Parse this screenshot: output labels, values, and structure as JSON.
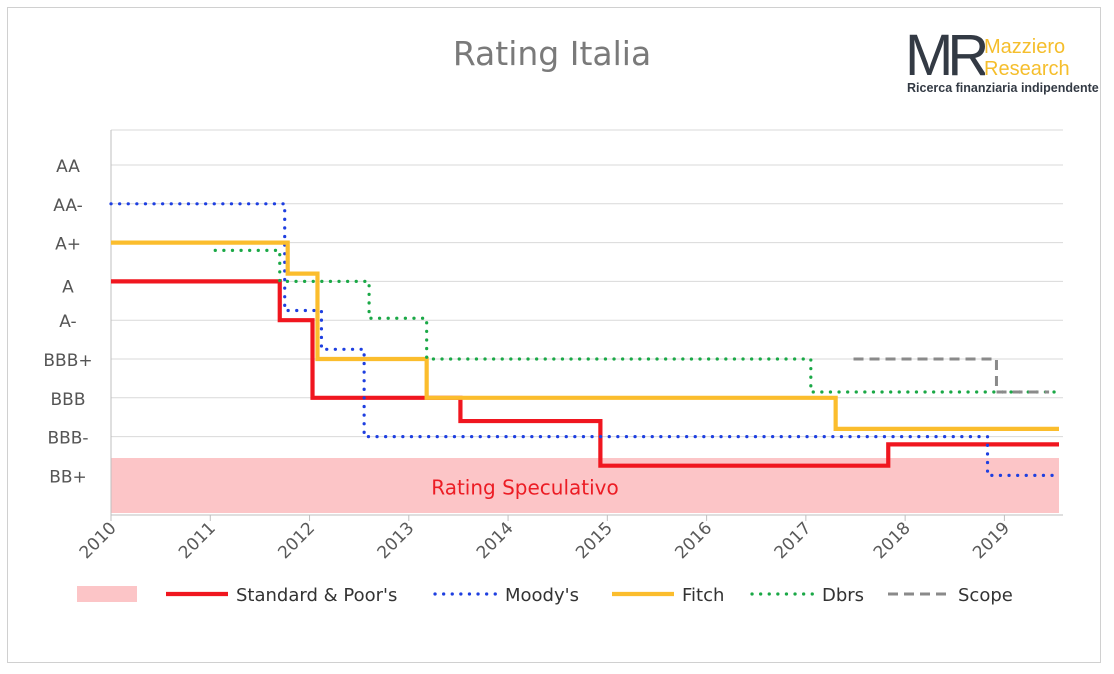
{
  "chart_data": {
    "type": "line",
    "title": "Rating Italia",
    "xlabel": "",
    "ylabel": "",
    "xlim": [
      2010,
      2019.55
    ],
    "x_ticks": [
      "2010",
      "2011",
      "2012",
      "2013",
      "2014",
      "2015",
      "2016",
      "2017",
      "2018",
      "2019"
    ],
    "y_levels": [
      "AA",
      "AA-",
      "A+",
      "A",
      "A-",
      "BBB+",
      "BBB",
      "BBB-",
      "BB+"
    ],
    "grid": true,
    "legend_position": "bottom",
    "speculative_band": {
      "label": "Rating Speculativo",
      "from_level": "BBB-",
      "to_level": "BB+",
      "color": "#fcc5c7"
    },
    "series": [
      {
        "name": "Standard & Poor's",
        "color": "#f0161f",
        "style": "solid",
        "points": [
          [
            2010,
            "A+"
          ],
          [
            2011.7,
            "A"
          ],
          [
            2012.03,
            "BBB+"
          ],
          [
            2013.52,
            "BBB+/BBB"
          ],
          [
            2014.93,
            "BBB-"
          ],
          [
            2017.83,
            "BBB"
          ],
          [
            2019.55,
            "BBB"
          ]
        ]
      },
      {
        "name": "Moody's",
        "color": "#1e3fe0",
        "style": "dotted",
        "points": [
          [
            2010,
            "AA"
          ],
          [
            2011.75,
            "A+/A"
          ],
          [
            2012.12,
            "A/A-"
          ],
          [
            2012.55,
            "BBB"
          ],
          [
            2018.83,
            "BBB-"
          ],
          [
            2019.55,
            "BBB-"
          ]
        ]
      },
      {
        "name": "Fitch",
        "color": "#fbbd2d",
        "style": "solid",
        "points": [
          [
            2010,
            "AA-"
          ],
          [
            2011.78,
            "AA-/A+"
          ],
          [
            2012.08,
            "A-"
          ],
          [
            2013.18,
            "BBB+"
          ],
          [
            2017.3,
            "BBB+/BBB"
          ],
          [
            2019.55,
            "BBB+/BBB"
          ]
        ]
      },
      {
        "name": "Dbrs",
        "color": "#1aa846",
        "style": "dotted",
        "points": [
          [
            2011.05,
            "AA-"
          ],
          [
            2011.7,
            "A+"
          ],
          [
            2012.6,
            "A+/A"
          ],
          [
            2013.18,
            "A-"
          ],
          [
            2017.05,
            "A-/BBB+"
          ],
          [
            2019.55,
            "A-/BBB+"
          ]
        ]
      },
      {
        "name": "Scope",
        "color": "#8a8a8a",
        "style": "dashed",
        "points": [
          [
            2017.48,
            "A-"
          ],
          [
            2018.92,
            "BBB+"
          ],
          [
            2019.55,
            "BBB+"
          ]
        ]
      }
    ],
    "series_y": {
      "Standard & Poor's": [
        3,
        4,
        6,
        6.6,
        7.75,
        7.2,
        7.2
      ],
      "Moody's": [
        1,
        3.75,
        4.75,
        7,
        8,
        8
      ],
      "Fitch": [
        2,
        2.8,
        5,
        6,
        6.8,
        6.8
      ],
      "Dbrs": [
        2.2,
        3,
        3.95,
        5,
        5.85,
        5.85
      ],
      "Scope": [
        5,
        6,
        6
      ]
    },
    "scope_extra": [
      [
        2017.48,
        5
      ],
      [
        2018.92,
        5
      ],
      [
        2018.92,
        5.85
      ],
      [
        2019.45,
        5.85
      ]
    ]
  },
  "logo": {
    "mark": "MR",
    "name_line1": "Mazziero",
    "name_line2": "Research",
    "tagline": "Ricerca finanziaria indipendente"
  }
}
